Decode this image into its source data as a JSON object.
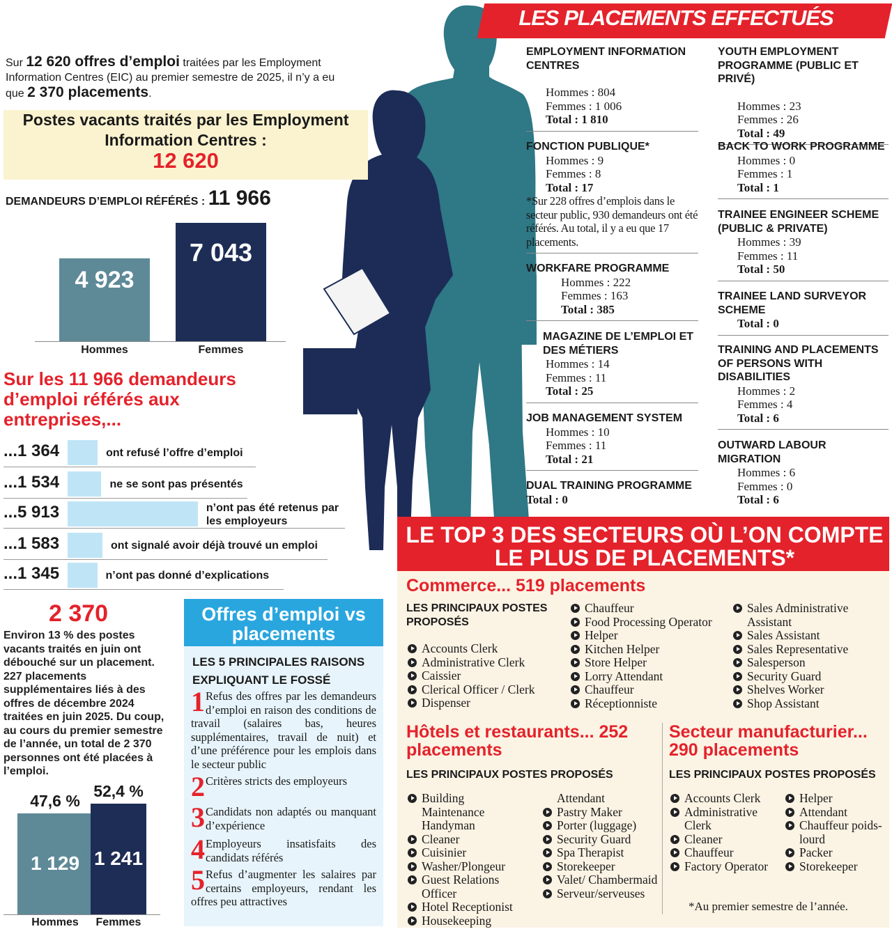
{
  "intro": [
    "Sur ",
    "12 620 offres d’emploi",
    " traitées par les Employment Information Centres (EIC) au premier semestre de 2025, il n’y a eu que ",
    "2 370 placements",
    "."
  ],
  "vacancies": {
    "label": "Postes vacants traités par les Employment Information Centres :",
    "value": "12 620"
  },
  "referred": {
    "label": "DEMANDEURS D’EMPLOI RÉFÉRÉS :",
    "value": "11 966",
    "chart": {
      "categories": [
        "Hommes",
        "Femmes"
      ],
      "values": [
        4923,
        7043
      ],
      "value_labels": [
        "4 923",
        "7 043"
      ],
      "colors": [
        "#5e8a98",
        "#1d2d55"
      ]
    }
  },
  "outcomes": {
    "heading": "Sur les 11 966 demandeurs d’emploi référés aux entreprises,...",
    "values": [
      1364,
      1534,
      5913,
      1583,
      1345
    ],
    "value_labels": [
      "...1 364",
      "...1 534",
      "...5 913",
      "...1 583",
      "...1 345"
    ],
    "texts": [
      "ont refusé l’offre d’emploi",
      "ne se sont pas présentés",
      "n’ont pas été retenus par les employeurs",
      "ont signalé avoir déjà trouvé un emploi",
      "n’ont pas donné d’explications"
    ]
  },
  "placements": {
    "value": "2 370",
    "text": "Environ 13 % des postes vacants traités en juin ont débouché sur un placement. 227 placements supplémentaires liés à des offres de décembre 2024 traitées en juin 2025. Du coup, au cours du premier semestre de l’année, un total de 2 370 personnes ont été placées à l’emploi.",
    "chart": {
      "categories": [
        "Hommes",
        "Femmes"
      ],
      "values": [
        1129,
        1241
      ],
      "value_labels": [
        "1 129",
        "1 241"
      ],
      "shares": [
        47.6,
        52.4
      ],
      "share_labels": [
        "47,6 %",
        "52,4 %"
      ],
      "colors": [
        "#5e8a98",
        "#1d2d55"
      ]
    }
  },
  "offres": {
    "title": "Offres d’emploi vs placements",
    "subtitle": "LES 5 PRINCIPALES RAISONS EXPLIQUANT LE FOSSÉ",
    "reasons": [
      {
        "number": "1",
        "text": "Refus des offres par les demandeurs d’emploi en raison des conditions de travail (salaires bas, heures supplémentaires, travail de nuit) et d’une préférence pour les emplois dans le secteur public"
      },
      {
        "number": "2",
        "text": "Critères stricts des employeurs"
      },
      {
        "number": "3",
        "text": "Candidats non adaptés ou manquant d’expérience"
      },
      {
        "number": "4",
        "text": "Employeurs insatisfaits des candidats référés"
      },
      {
        "number": "5",
        "text": "Refus d’augmenter les salaires par certains employeurs, rendant les offres peu attractives"
      }
    ]
  },
  "programmes": {
    "title": "LES PLACEMENTS EFFECTUÉS",
    "left": [
      {
        "name": "EMPLOYMENT INFORMATION CENTRES",
        "hommes": "Hommes : 804",
        "femmes": "Femmes : 1 006",
        "total": "Total : 1 810"
      },
      {
        "name": "FONCTION PUBLIQUE*",
        "hommes": "Hommes : 9",
        "femmes": "Femmes : 8",
        "total": "Total : 17",
        "note": "*Sur 228 offres d’emplois dans le secteur public, 930 demandeurs ont été référés. Au total, il y a eu que 17 placements."
      },
      {
        "name": "WORKFARE PROGRAMME",
        "hommes": "Hommes : 222",
        "femmes": "Femmes : 163",
        "total": "Total : 385"
      },
      {
        "name": "MAGAZINE DE L’EMPLOI ET DES MÉTIERS",
        "hommes": "Hommes : 14",
        "femmes": "Femmes : 11",
        "total": "Total : 25"
      },
      {
        "name": "JOB MANAGEMENT SYSTEM",
        "hommes": "Hommes : 10",
        "femmes": "Femmes : 11",
        "total": "Total : 21"
      },
      {
        "name": "DUAL TRAINING PROGRAMME",
        "total": "Total : 0"
      }
    ],
    "right": [
      {
        "name": "YOUTH EMPLOYMENT PROGRAMME (PUBLIC ET PRIVÉ)",
        "hommes": "Hommes : 23",
        "femmes": "Femmes : 26",
        "total": "Total : 49"
      },
      {
        "name": "BACK TO WORK PROGRAMME",
        "hommes": "Hommes : 0",
        "femmes": "Femmes : 1",
        "total": "Total : 1"
      },
      {
        "name": "TRAINEE ENGINEER SCHEME (PUBLIC & PRIVATE)",
        "hommes": "Hommes : 39",
        "femmes": "Femmes : 11",
        "total": "Total : 50"
      },
      {
        "name": "TRAINEE LAND SURVEYOR SCHEME",
        "total": "Total : 0"
      },
      {
        "name": "TRAINING AND PLACEMENTS OF PERSONS WITH DISABILITIES",
        "hommes": "Hommes : 2",
        "femmes": "Femmes : 4",
        "total": "Total : 6"
      },
      {
        "name": "OUTWARD LABOUR MIGRATION",
        "hommes": "Hommes : 6",
        "femmes": "Femmes : 0",
        "total": "Total : 6"
      }
    ]
  },
  "top3": {
    "title": "LE TOP 3 DES SECTEURS OÙ L’ON COMPTE LE PLUS DE PLACEMENTS*",
    "footnote": "*Au premier semestre de l’année.",
    "sectors": [
      {
        "title": "Commerce... 519 placements",
        "label": "LES PRINCIPAUX POSTES PROPOSÉS",
        "columns": [
          [
            "Accounts Clerk",
            "Administrative Clerk",
            "Caissier",
            "Clerical Officer / Clerk",
            "Dispenser"
          ],
          [
            "Chauffeur",
            "Food Processing Operator",
            "Helper",
            "Kitchen Helper",
            "Store Helper",
            "Lorry Attendant",
            "Chauffeur",
            "Réceptionniste"
          ],
          [
            "Sales Administrative Assistant",
            "Sales Assistant",
            "Sales Representative",
            "Salesperson",
            "Security Guard",
            "Shelves Worker",
            "Shop Assistant"
          ]
        ]
      },
      {
        "title": "Hôtels et restaurants... 252 placements",
        "label": "LES PRINCIPAUX POSTES PROPOSÉS",
        "continuation": "Attendant",
        "columns": [
          [
            "Building Maintenance Handyman",
            "Cleaner",
            "Cuisinier",
            "Washer/Plongeur",
            "Guest Relations Officer",
            "Hotel Receptionist",
            "Housekeeping"
          ],
          [
            "Pastry Maker",
            "Porter (luggage)",
            "Security Guard",
            "Spa Therapist",
            "Storekeeper",
            "Valet/ Chambermaid",
            "Serveur/serveuses"
          ]
        ]
      },
      {
        "title": "Secteur manufacturier... 290 placements",
        "label": "LES PRINCIPAUX POSTES PROPOSÉS",
        "columns": [
          [
            "Accounts Clerk",
            "Administrative Clerk",
            "Cleaner",
            "Chauffeur",
            "Factory Operator"
          ],
          [
            "Helper",
            "Attendant",
            "Chauffeur poids-lourd",
            "Packer",
            "Storekeeper"
          ]
        ]
      }
    ]
  }
}
